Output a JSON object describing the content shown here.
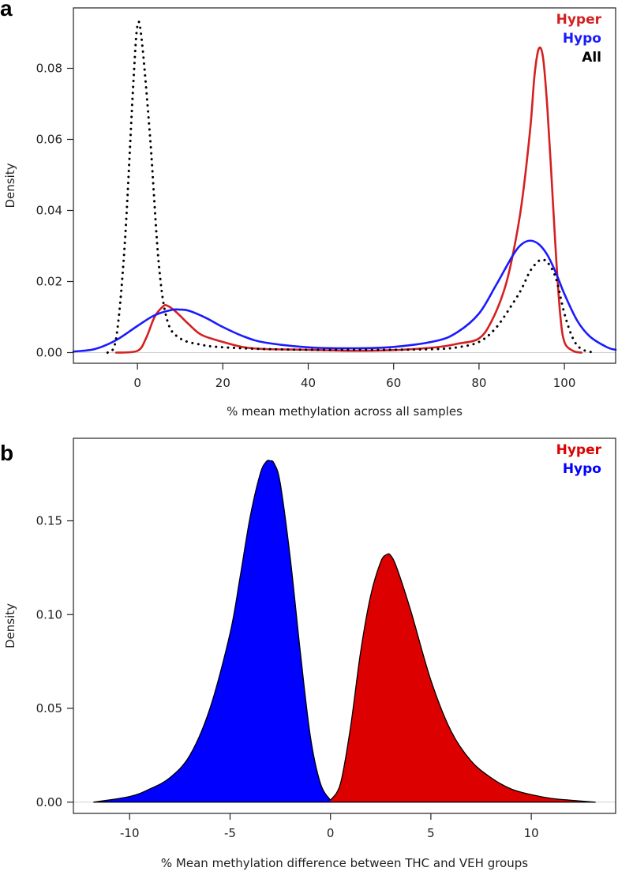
{
  "chart_data": [
    {
      "panel": "a",
      "type": "line",
      "xlabel": "% mean methylation across all samples",
      "ylabel": "Density",
      "xlim": [
        -15,
        112
      ],
      "ylim": [
        -0.003,
        0.097
      ],
      "xticks": [
        0,
        20,
        40,
        60,
        80,
        100
      ],
      "yticks": [
        0.0,
        0.02,
        0.04,
        0.06,
        0.08
      ],
      "ytick_labels": [
        "0.00",
        "0.02",
        "0.04",
        "0.06",
        "0.08"
      ],
      "legend": {
        "position": "top-right",
        "entries": [
          {
            "label": "Hyper",
            "color": "#d42020"
          },
          {
            "label": "Hypo",
            "color": "#1a1aff"
          },
          {
            "label": "All",
            "color": "#000000"
          }
        ]
      },
      "series": [
        {
          "name": "Hyper",
          "color": "#d42020",
          "style": "solid",
          "x": [
            -5,
            0,
            2,
            4,
            6,
            7,
            9,
            12,
            15,
            20,
            25,
            30,
            40,
            50,
            60,
            70,
            75,
            80,
            83,
            86,
            88,
            90,
            92,
            93,
            94,
            95,
            96,
            97,
            98,
            99,
            100,
            102,
            104
          ],
          "y": [
            0.0,
            0.0005,
            0.004,
            0.01,
            0.013,
            0.0132,
            0.0115,
            0.008,
            0.005,
            0.003,
            0.0015,
            0.001,
            0.0008,
            0.0005,
            0.0007,
            0.0015,
            0.0025,
            0.004,
            0.009,
            0.018,
            0.028,
            0.042,
            0.063,
            0.078,
            0.0855,
            0.083,
            0.069,
            0.049,
            0.028,
            0.011,
            0.003,
            0.0005,
            0.0
          ]
        },
        {
          "name": "Hypo",
          "color": "#1a1aff",
          "style": "solid",
          "x": [
            -15,
            -10,
            -5,
            0,
            4,
            8,
            10,
            12,
            16,
            20,
            25,
            30,
            40,
            50,
            60,
            70,
            75,
            80,
            84,
            88,
            90,
            92,
            94,
            96,
            98,
            100,
            103,
            106,
            110,
            112
          ],
          "y": [
            0.0003,
            0.001,
            0.0035,
            0.0075,
            0.0105,
            0.012,
            0.0121,
            0.0118,
            0.0098,
            0.0072,
            0.0045,
            0.0028,
            0.0015,
            0.0012,
            0.0016,
            0.0033,
            0.0058,
            0.011,
            0.019,
            0.0275,
            0.0305,
            0.0315,
            0.0305,
            0.0275,
            0.0225,
            0.0165,
            0.009,
            0.0045,
            0.0015,
            0.0008
          ]
        },
        {
          "name": "All",
          "color": "#000000",
          "style": "dotted",
          "x": [
            -7,
            -5,
            -3,
            -1,
            0,
            1,
            3,
            5,
            7,
            10,
            15,
            20,
            30,
            40,
            50,
            60,
            70,
            75,
            80,
            84,
            88,
            90,
            92,
            94,
            95,
            96,
            98,
            100,
            102,
            104,
            107
          ],
          "y": [
            0.0,
            0.004,
            0.03,
            0.075,
            0.092,
            0.088,
            0.06,
            0.025,
            0.009,
            0.004,
            0.0022,
            0.0015,
            0.001,
            0.0008,
            0.0008,
            0.0008,
            0.001,
            0.0015,
            0.003,
            0.007,
            0.014,
            0.018,
            0.023,
            0.0258,
            0.026,
            0.0255,
            0.021,
            0.011,
            0.004,
            0.001,
            0.0
          ]
        }
      ]
    },
    {
      "panel": "b",
      "type": "area",
      "xlabel": "% Mean methylation difference between THC and VEH groups",
      "ylabel": "Density",
      "xlim": [
        -12.8,
        14.2
      ],
      "ylim": [
        -0.006,
        0.194
      ],
      "xticks": [
        -10,
        -5,
        0,
        5,
        10
      ],
      "yticks": [
        0.0,
        0.05,
        0.1,
        0.15
      ],
      "ytick_labels": [
        "0.00",
        "0.05",
        "0.10",
        "0.15"
      ],
      "legend": {
        "position": "top-right",
        "entries": [
          {
            "label": "Hyper",
            "color": "#dd0000"
          },
          {
            "label": "Hypo",
            "color": "#0000ff"
          }
        ]
      },
      "series": [
        {
          "name": "Hypo",
          "color": "#0000ff",
          "style": "filled",
          "x": [
            -11.8,
            -10,
            -9,
            -8,
            -7,
            -6,
            -5,
            -4.5,
            -4,
            -3.5,
            -3.2,
            -3.0,
            -2.8,
            -2.5,
            -2,
            -1.5,
            -1,
            -0.5,
            0
          ],
          "y": [
            0.0,
            0.003,
            0.007,
            0.013,
            0.025,
            0.05,
            0.09,
            0.12,
            0.152,
            0.175,
            0.1815,
            0.182,
            0.1805,
            0.17,
            0.13,
            0.08,
            0.035,
            0.01,
            0.001
          ]
        },
        {
          "name": "Hyper",
          "color": "#dd0000",
          "style": "filled",
          "x": [
            0,
            0.5,
            1,
            1.5,
            2,
            2.5,
            2.8,
            3.0,
            3.3,
            4,
            5,
            6,
            7,
            8,
            9,
            10,
            11,
            12,
            13.2
          ],
          "y": [
            0.001,
            0.01,
            0.04,
            0.08,
            0.11,
            0.128,
            0.132,
            0.1315,
            0.125,
            0.102,
            0.065,
            0.038,
            0.022,
            0.013,
            0.007,
            0.004,
            0.002,
            0.001,
            0.0
          ]
        }
      ]
    }
  ]
}
